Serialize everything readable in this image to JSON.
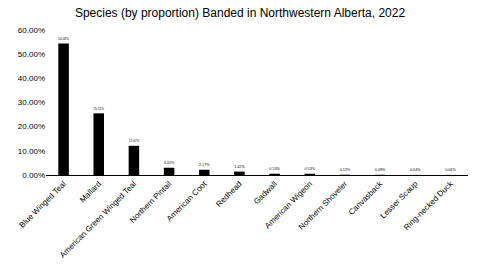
{
  "chart_data": {
    "type": "bar",
    "title": "Species (by proportion) Banded in Northwestern Alberta, 2022",
    "categories": [
      "Blue Winged Teal",
      "Mallard",
      "American Green Winged Teal",
      "Northern Pintail",
      "American Coot",
      "Redhead",
      "Gadwall",
      "American Wigeon",
      "Northern Shoveler",
      "Canvasback",
      "Lesser Scaup",
      "Ring-necked Duck"
    ],
    "values": [
      54.44,
      25.52,
      12.07,
      3.01,
      2.17,
      1.42,
      0.53,
      0.53,
      0.13,
      0.09,
      0.04,
      0.04
    ],
    "value_labels": [
      "54.44%",
      "25.52%",
      "12.07%",
      "3.01%",
      "2.17%",
      "1.42%",
      "0.53%",
      "0.53%",
      "0.13%",
      "0.09%",
      "0.04%",
      "0.04%"
    ],
    "color": "#000000",
    "ylim": [
      0,
      60
    ],
    "yticks": [
      {
        "value": 0,
        "label": "0.00%"
      },
      {
        "value": 10,
        "label": "10.00%"
      },
      {
        "value": 20,
        "label": "20.00%"
      },
      {
        "value": 30,
        "label": "30.00%"
      },
      {
        "value": 40,
        "label": "40.00%"
      },
      {
        "value": 50,
        "label": "50.00%"
      },
      {
        "value": 60,
        "label": "60.00%"
      }
    ],
    "grid": false,
    "data_labels": true
  }
}
